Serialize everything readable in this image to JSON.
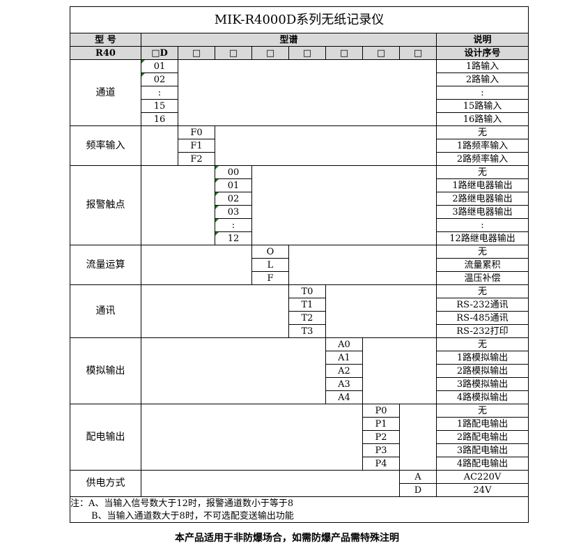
{
  "title": "MIK-R4000D系列无纸记录仪",
  "header": {
    "model": "型 号",
    "spectrum": "型谱",
    "desc": "说明"
  },
  "subheader": {
    "model": "R40",
    "codes": [
      "□D",
      "□",
      "□",
      "□",
      "□",
      "□",
      "□",
      "□"
    ],
    "desc": "设计序号"
  },
  "groups": [
    {
      "label": "通道",
      "col": 1,
      "rows": [
        [
          "01",
          "1路输入"
        ],
        [
          "02",
          "2路输入"
        ],
        [
          ":",
          ":"
        ],
        [
          "15",
          "15路输入"
        ],
        [
          "16",
          "16路输入"
        ]
      ]
    },
    {
      "label": "频率输入",
      "col": 2,
      "rows": [
        [
          "F0",
          "无"
        ],
        [
          "F1",
          "1路频率输入"
        ],
        [
          "F2",
          "2路频率输入"
        ]
      ]
    },
    {
      "label": "报警触点",
      "col": 3,
      "rows": [
        [
          "00",
          "无"
        ],
        [
          "01",
          "1路继电器输出"
        ],
        [
          "02",
          "2路继电器输出"
        ],
        [
          "03",
          "3路继电器输出"
        ],
        [
          ":",
          ":"
        ],
        [
          "12",
          "12路继电器输出"
        ]
      ]
    },
    {
      "label": "流量运算",
      "col": 4,
      "rows": [
        [
          "O",
          "无"
        ],
        [
          "L",
          "流量累积"
        ],
        [
          "F",
          "温压补偿"
        ]
      ]
    },
    {
      "label": "通讯",
      "col": 5,
      "rows": [
        [
          "T0",
          "无"
        ],
        [
          "T1",
          "RS-232通讯"
        ],
        [
          "T2",
          "RS-485通讯"
        ],
        [
          "T3",
          "RS-232打印"
        ]
      ]
    },
    {
      "label": "模拟输出",
      "col": 6,
      "rows": [
        [
          "A0",
          "无"
        ],
        [
          "A1",
          "1路模拟输出"
        ],
        [
          "A2",
          "2路模拟输出"
        ],
        [
          "A3",
          "3路模拟输出"
        ],
        [
          "A4",
          "4路模拟输出"
        ]
      ]
    },
    {
      "label": "配电输出",
      "col": 7,
      "rows": [
        [
          "P0",
          "无"
        ],
        [
          "P1",
          "1路配电输出"
        ],
        [
          "P2",
          "2路配电输出"
        ],
        [
          "P3",
          "3路配电输出"
        ],
        [
          "P4",
          "4路配电输出"
        ]
      ]
    },
    {
      "label": "供电方式",
      "col": 8,
      "rows": [
        [
          "A",
          "AC220V"
        ],
        [
          "D",
          "24V"
        ]
      ]
    }
  ],
  "notes": [
    "注：A、当输入信号数大于12时，报警通道数小于等于8",
    "B、当输入通道数大于8时，不可选配变送输出功能"
  ],
  "footer": "本产品适用于非防爆场合，如需防爆产品需特殊注明"
}
